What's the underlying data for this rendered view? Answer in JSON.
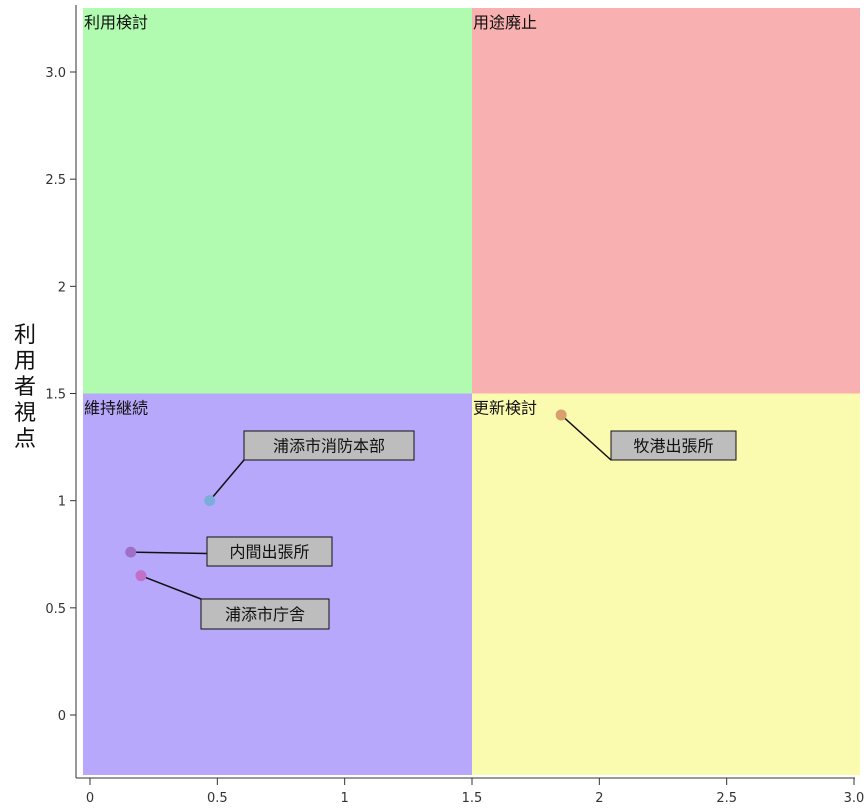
{
  "chart_data": {
    "type": "scatter",
    "title": "",
    "xlabel": "",
    "ylabel": "利用者視点",
    "xlim": [
      0,
      3.0
    ],
    "ylim": [
      0,
      3.0
    ],
    "x_ticks": [
      "0",
      "0.5",
      "1",
      "1.5",
      "2",
      "2.5",
      "3.0"
    ],
    "y_ticks": [
      "0",
      "0.5",
      "1",
      "1.5",
      "2",
      "2.5",
      "3.0"
    ],
    "grid": false,
    "quadrants": [
      {
        "label": "利用検討",
        "x_range": [
          0,
          1.5
        ],
        "y_range": [
          1.5,
          3.3
        ],
        "color": "#b0fbb0"
      },
      {
        "label": "用途廃止",
        "x_range": [
          1.5,
          3.0
        ],
        "y_range": [
          1.5,
          3.3
        ],
        "color": "#f8b0b0"
      },
      {
        "label": "維持継続",
        "x_range": [
          0,
          1.5
        ],
        "y_range": [
          -0.3,
          1.5
        ],
        "color": "#b8a8fb"
      },
      {
        "label": "更新検討",
        "x_range": [
          1.5,
          3.0
        ],
        "y_range": [
          -0.3,
          1.5
        ],
        "color": "#fbfbb0"
      }
    ],
    "points": [
      {
        "label": "浦添市消防本部",
        "x": 0.47,
        "y": 1.0,
        "color": "#7aaed8"
      },
      {
        "label": "内間出張所",
        "x": 0.16,
        "y": 0.76,
        "color": "#a070c8"
      },
      {
        "label": "浦添市庁舎",
        "x": 0.2,
        "y": 0.65,
        "color": "#c070c8"
      },
      {
        "label": "牧港出張所",
        "x": 1.85,
        "y": 1.4,
        "color": "#d8a070"
      }
    ]
  }
}
